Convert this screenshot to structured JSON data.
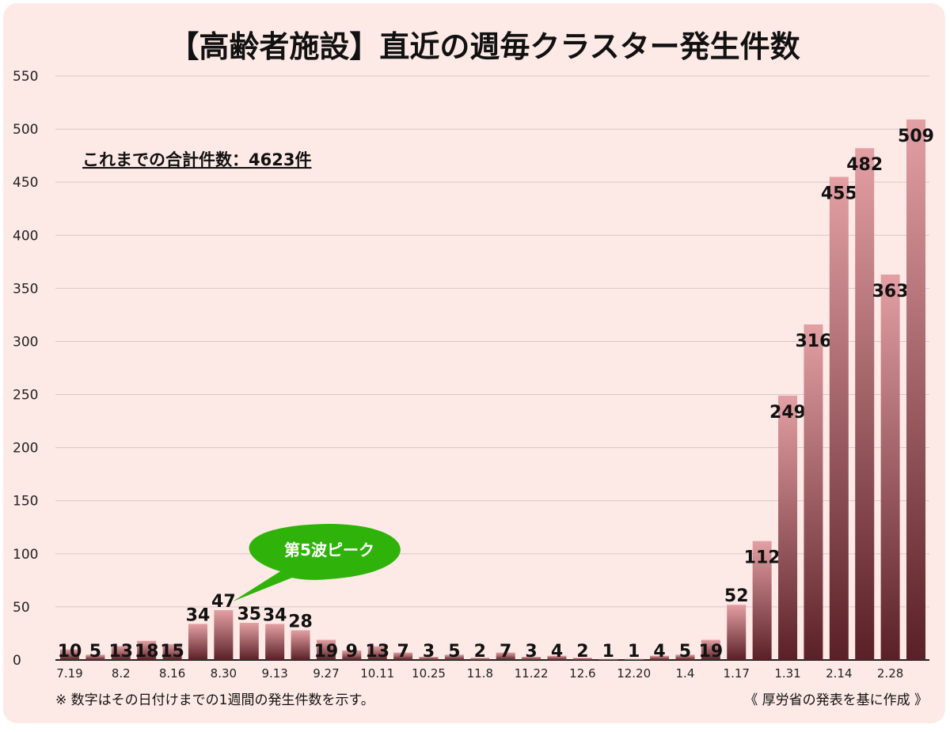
{
  "chart_data": {
    "type": "bar",
    "title": "【高齢者施設】直近の週毎クラスター発生件数",
    "annotation_total": "これまでの合計件数：4623件",
    "callout": "第5波ピーク",
    "footnote_left": "※ 数字はその日付けまでの1週間の発生件数を示す。",
    "footnote_right": "《 厚労省の発表を基に作成 》",
    "ylim": [
      0,
      550
    ],
    "yticks": [
      0,
      50,
      100,
      150,
      200,
      250,
      300,
      350,
      400,
      450,
      500,
      550
    ],
    "grid": true,
    "x_tick_labels": [
      "7.19",
      "",
      "8.2",
      "",
      "8.16",
      "",
      "8.30",
      "",
      "9.13",
      "",
      "9.27",
      "",
      "10.11",
      "",
      "10.25",
      "",
      "11.8",
      "",
      "11.22",
      "",
      "12.6",
      "",
      "12.20",
      "",
      "1.4",
      "",
      "1.17",
      "",
      "1.31",
      "",
      "2.14",
      "",
      "2.28",
      ""
    ],
    "values": [
      10,
      5,
      13,
      18,
      15,
      34,
      47,
      35,
      34,
      28,
      19,
      9,
      13,
      7,
      3,
      5,
      2,
      7,
      3,
      4,
      2,
      1,
      1,
      4,
      5,
      19,
      52,
      112,
      249,
      316,
      455,
      482,
      363,
      509
    ],
    "colors": {
      "bar_light": "#e3a0a4",
      "bar_dark": "#5a2027",
      "callout": "#2fb30a",
      "background": "#fdeae6"
    }
  }
}
